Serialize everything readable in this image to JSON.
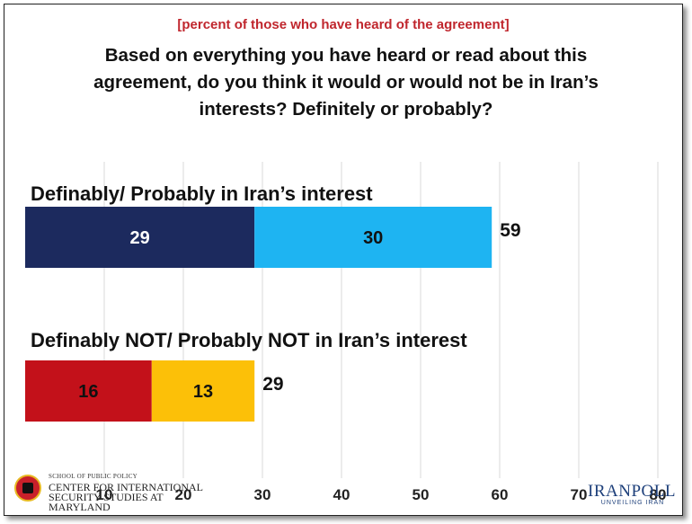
{
  "subtitle": "[percent of those who have heard of the agreement]",
  "title": "Based on everything you have heard or read about this agreement, do you think it would or would not be in Iran’s interests? Definitely or probably?",
  "chart_data": {
    "type": "bar",
    "orientation": "horizontal",
    "stacked": true,
    "categories": [
      "Definably/ Probably in Iran’s interest",
      "Definably NOT/ Probably NOT in Iran’s interest"
    ],
    "segments": [
      {
        "values": [
          29,
          30
        ],
        "colors": [
          "#1c2a5e",
          "#1eb4f2"
        ]
      },
      {
        "values": [
          16,
          13
        ],
        "colors": [
          "#c3111a",
          "#fcc008"
        ]
      }
    ],
    "totals": [
      59,
      29
    ],
    "xlim": [
      0,
      80
    ],
    "xticks": [
      10,
      20,
      30,
      40,
      50,
      60,
      70,
      80
    ],
    "grid": true
  },
  "logos": {
    "left_small": "SCHOOL OF PUBLIC POLICY",
    "left_line1": "CENTER FOR INTERNATIONAL",
    "left_line2": "SECURITY STUDIES AT MARYLAND",
    "right_name": "IRANPOLL",
    "right_tagline": "UNVEILING IRAN"
  }
}
